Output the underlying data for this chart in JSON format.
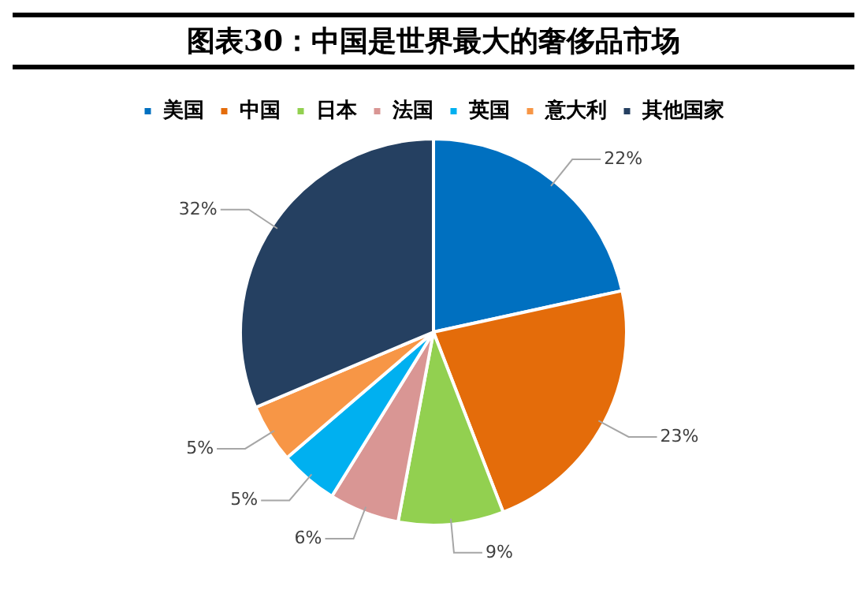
{
  "chart_data": {
    "type": "pie",
    "title": "图表30：中国是世界最大的奢侈品市场",
    "categories": [
      "美国",
      "中国",
      "日本",
      "法国",
      "英国",
      "意大利",
      "其他国家"
    ],
    "values": [
      22,
      23,
      9,
      6,
      5,
      5,
      32
    ],
    "value_labels": [
      "22%",
      "23%",
      "9%",
      "6%",
      "5%",
      "5%",
      "32%"
    ],
    "colors": [
      "#0070c0",
      "#e46c0a",
      "#92d050",
      "#d99694",
      "#00b0f0",
      "#f79646",
      "#254061"
    ],
    "legend": "top"
  }
}
